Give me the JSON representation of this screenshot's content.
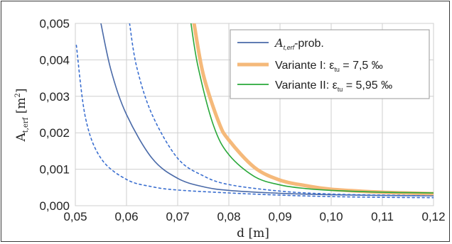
{
  "chart_data": {
    "type": "line",
    "title": "",
    "xlabel": "d [m]",
    "ylabel": "A_{t,erf} [m²]",
    "xlim": [
      0.05,
      0.12
    ],
    "ylim": [
      0,
      0.005
    ],
    "x_ticks": [
      "0,05",
      "0,06",
      "0,07",
      "0,08",
      "0,09",
      "0,10",
      "0,11",
      "0,12"
    ],
    "y_ticks": [
      "0,000",
      "0,001",
      "0,002",
      "0,003",
      "0,004",
      "0,005"
    ],
    "grid": true,
    "legend_position": "top-right",
    "legend": {
      "entry1_italic": "A",
      "entry1_sub": "t,erf",
      "entry1_suffix": "-prob.",
      "entry2_prefix": "Variante I: ε",
      "entry2_sub": "tu",
      "entry2_suffix": " = 7,5 ‰",
      "entry3_prefix": "Variante II: ε",
      "entry3_sub": "tu",
      "entry3_suffix": " = 5,95 ‰"
    },
    "series": [
      {
        "name": "A_t,erf-prob.",
        "color": "#4a6aa8",
        "style": "solid",
        "x": [
          0.055,
          0.057,
          0.06,
          0.065,
          0.07,
          0.075,
          0.08,
          0.09,
          0.1,
          0.11,
          0.12
        ],
        "y": [
          0.005,
          0.0037,
          0.0025,
          0.0013,
          0.00075,
          0.00052,
          0.00042,
          0.00034,
          0.0003,
          0.00028,
          0.00027
        ]
      },
      {
        "name": "",
        "color": "#3b6fd0",
        "style": "dashed",
        "x": [
          0.0502,
          0.052,
          0.055,
          0.06,
          0.065,
          0.07,
          0.08,
          0.09,
          0.1,
          0.11,
          0.12
        ],
        "y": [
          0.0044,
          0.0024,
          0.0013,
          0.00072,
          0.00052,
          0.00043,
          0.00035,
          0.00029,
          0.00025,
          0.00023,
          0.00022
        ]
      },
      {
        "name": "",
        "color": "#3b6fd0",
        "style": "dashed",
        "x": [
          0.0606,
          0.062,
          0.065,
          0.07,
          0.075,
          0.08,
          0.09,
          0.1,
          0.11,
          0.12
        ],
        "y": [
          0.005,
          0.0038,
          0.0025,
          0.0013,
          0.00082,
          0.00058,
          0.0004,
          0.00032,
          0.00029,
          0.00027
        ]
      },
      {
        "name": "Variante I: ε_tu = 7,5 ‰",
        "color": "#f5b97a",
        "style": "solid-thick",
        "x": [
          0.0732,
          0.075,
          0.078,
          0.08,
          0.085,
          0.09,
          0.095,
          0.1,
          0.11,
          0.12
        ],
        "y": [
          0.005,
          0.0036,
          0.0023,
          0.0018,
          0.00105,
          0.0007,
          0.00055,
          0.00045,
          0.00037,
          0.00033
        ]
      },
      {
        "name": "Variante II: ε_tu = 5,95 ‰",
        "color": "#2aa83a",
        "style": "solid",
        "x": [
          0.0726,
          0.074,
          0.077,
          0.08,
          0.085,
          0.09,
          0.095,
          0.1,
          0.11,
          0.12
        ],
        "y": [
          0.005,
          0.0038,
          0.0022,
          0.0014,
          0.0008,
          0.00057,
          0.00047,
          0.00042,
          0.00037,
          0.00035
        ]
      }
    ]
  }
}
